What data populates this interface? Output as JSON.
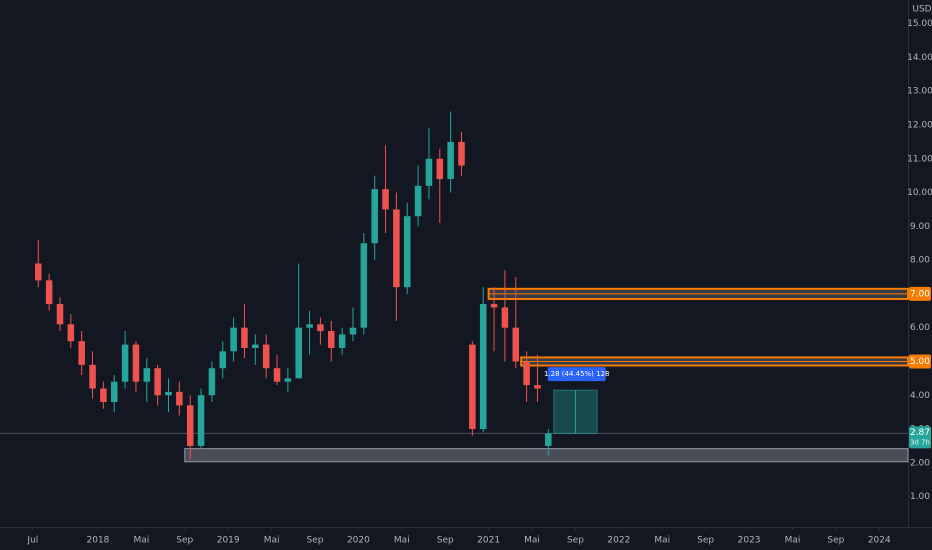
{
  "chart_data": {
    "type": "candlestick",
    "currency": "USD",
    "x": [
      "2017-07",
      "2017-08",
      "2017-09",
      "2017-10",
      "2017-11",
      "2017-12",
      "2018-01",
      "2018-02",
      "2018-03",
      "2018-04",
      "2018-05",
      "2018-06",
      "2018-07",
      "2018-08",
      "2018-09",
      "2018-10",
      "2018-11",
      "2018-12",
      "2019-01",
      "2019-02",
      "2019-03",
      "2019-04",
      "2019-05",
      "2019-06",
      "2019-07",
      "2019-08",
      "2019-09",
      "2019-10",
      "2019-11",
      "2019-12",
      "2020-01",
      "2020-02",
      "2020-03",
      "2020-04",
      "2020-05",
      "2020-06",
      "2020-07",
      "2020-08",
      "2020-09",
      "2020-10",
      "2020-11",
      "2020-12",
      "2021-01",
      "2021-02",
      "2021-03",
      "2021-04",
      "2021-05",
      "2021-06"
    ],
    "open": [
      7.9,
      7.4,
      6.7,
      6.1,
      5.6,
      4.9,
      4.2,
      3.8,
      4.4,
      5.5,
      4.4,
      4.8,
      4.0,
      4.1,
      3.7,
      2.5,
      4.0,
      4.8,
      5.3,
      6.0,
      5.4,
      5.5,
      4.8,
      4.4,
      4.5,
      6.0,
      6.1,
      5.9,
      5.4,
      5.8,
      6.0,
      8.5,
      10.1,
      9.5,
      7.2,
      9.3,
      10.2,
      11.0,
      10.4,
      11.5,
      5.5,
      3.0,
      6.7,
      6.6,
      6.0,
      5.0,
      4.3,
      2.5
    ],
    "high": [
      8.6,
      7.6,
      6.9,
      6.4,
      5.9,
      5.3,
      4.4,
      4.6,
      5.9,
      5.6,
      5.1,
      4.9,
      4.5,
      4.4,
      4.0,
      4.2,
      5.0,
      5.6,
      6.3,
      6.7,
      5.8,
      5.8,
      5.2,
      4.8,
      7.9,
      6.5,
      6.3,
      6.2,
      6.0,
      6.6,
      8.8,
      10.5,
      11.4,
      10.0,
      9.7,
      10.8,
      11.9,
      11.3,
      12.4,
      11.8,
      5.6,
      7.2,
      7.2,
      7.7,
      7.5,
      5.3,
      5.2,
      3.0
    ],
    "low": [
      7.2,
      6.5,
      5.9,
      5.4,
      4.6,
      3.9,
      3.6,
      3.5,
      4.2,
      4.1,
      3.8,
      3.7,
      3.5,
      3.4,
      2.1,
      2.4,
      3.8,
      4.5,
      5.0,
      5.1,
      4.9,
      4.5,
      4.3,
      4.1,
      4.5,
      5.2,
      5.5,
      5.0,
      5.2,
      5.6,
      5.8,
      8.0,
      8.8,
      6.2,
      7.0,
      9.0,
      9.8,
      9.1,
      10.0,
      10.5,
      2.8,
      2.9,
      5.3,
      5.0,
      4.8,
      3.8,
      3.8,
      2.2
    ],
    "close": [
      7.4,
      6.7,
      6.1,
      5.6,
      4.9,
      4.2,
      3.8,
      4.4,
      5.5,
      4.4,
      4.8,
      4.0,
      4.1,
      3.7,
      2.5,
      4.0,
      4.8,
      5.3,
      6.0,
      5.4,
      5.5,
      4.8,
      4.4,
      4.5,
      6.0,
      6.1,
      5.9,
      5.4,
      5.8,
      6.0,
      8.5,
      10.1,
      9.5,
      7.2,
      9.3,
      10.2,
      11.0,
      10.4,
      11.5,
      10.8,
      3.0,
      6.7,
      6.6,
      6.0,
      5.0,
      4.3,
      4.2,
      2.87
    ],
    "up_color": "#26a69a",
    "down_color": "#ef5350",
    "xlim": [
      "2017-06",
      "2024-03"
    ],
    "xticks": [
      {
        "value": "2017-07",
        "label": "Jul"
      },
      {
        "value": "2018-01",
        "label": "2018"
      },
      {
        "value": "2018-05",
        "label": "Mai"
      },
      {
        "value": "2018-09",
        "label": "Sep"
      },
      {
        "value": "2019-01",
        "label": "2019"
      },
      {
        "value": "2019-05",
        "label": "Mai"
      },
      {
        "value": "2019-09",
        "label": "Sep"
      },
      {
        "value": "2020-01",
        "label": "2020"
      },
      {
        "value": "2020-05",
        "label": "Mai"
      },
      {
        "value": "2020-09",
        "label": "Sep"
      },
      {
        "value": "2021-01",
        "label": "2021"
      },
      {
        "value": "2021-05",
        "label": "Mai"
      },
      {
        "value": "2021-09",
        "label": "Sep"
      },
      {
        "value": "2022-01",
        "label": "2022"
      },
      {
        "value": "2022-05",
        "label": "Mai"
      },
      {
        "value": "2022-09",
        "label": "Sep"
      },
      {
        "value": "2023-01",
        "label": "2023"
      },
      {
        "value": "2023-05",
        "label": "Mai"
      },
      {
        "value": "2023-09",
        "label": "Sep"
      },
      {
        "value": "2024-01",
        "label": "2024"
      }
    ],
    "ylim": [
      0.1,
      15.7
    ],
    "yticks": [
      {
        "value": 1,
        "label": "1.00"
      },
      {
        "value": 2,
        "label": "2.00"
      },
      {
        "value": 3,
        "label": "3.00"
      },
      {
        "value": 4,
        "label": "4.00"
      },
      {
        "value": 5,
        "label": "5.00"
      },
      {
        "value": 6,
        "label": "6.00"
      },
      {
        "value": 7,
        "label": "7.00"
      },
      {
        "value": 8,
        "label": "8.00"
      },
      {
        "value": 9,
        "label": "9.00"
      },
      {
        "value": 10,
        "label": "10.00"
      },
      {
        "value": 11,
        "label": "11.00"
      },
      {
        "value": 12,
        "label": "12.00"
      },
      {
        "value": 13,
        "label": "13.00"
      },
      {
        "value": 14,
        "label": "14.00"
      },
      {
        "value": 15,
        "label": "15.00"
      }
    ],
    "levels": [
      {
        "value": 7,
        "label": "7.00",
        "from": 6.85,
        "to": 7.15,
        "start": "2021-01",
        "color": "#f57c00"
      },
      {
        "value": 5,
        "label": "5.00",
        "from": 4.88,
        "to": 5.12,
        "start": "2021-04",
        "color": "#f57c00"
      }
    ],
    "zones": [
      {
        "from": 2.03,
        "to": 2.42,
        "start": "2018-09",
        "color": "#787b86"
      }
    ],
    "measure": {
      "label": "1.28 (44.45%) 128",
      "from": 2.87,
      "to": 4.15,
      "start": "2021-07",
      "end": "2021-11",
      "color": "#2962ff"
    },
    "last": {
      "value": 2.87,
      "countdown": "3d 7h"
    }
  }
}
